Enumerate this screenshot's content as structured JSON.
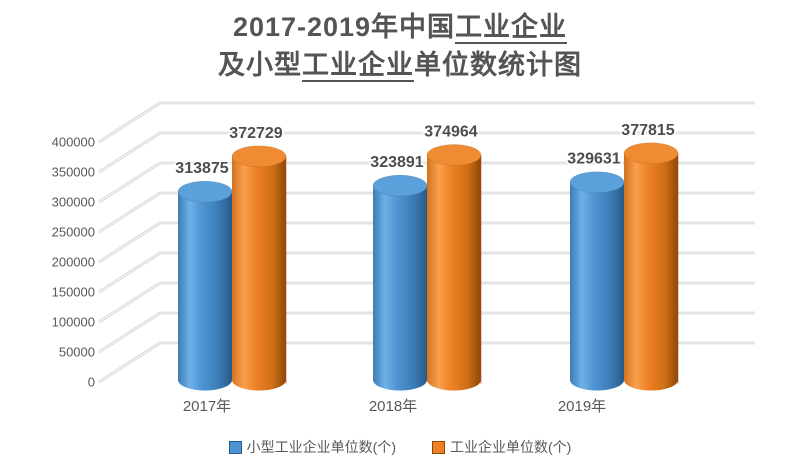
{
  "title": {
    "lines": [
      {
        "pre": "2017-2019年中国",
        "underline": "工业企业",
        "post": ""
      },
      {
        "pre": "及小型",
        "underline": "工业企业",
        "post": "单位数统计图"
      }
    ]
  },
  "chart_data": {
    "type": "bar",
    "subtype": "3d-cylinder",
    "title": "2017-2019年中国工业企业及小型工业企业单位数统计图",
    "categories": [
      "2017年",
      "2018年",
      "2019年"
    ],
    "series": [
      {
        "name": "小型工业企业单位数(个)",
        "color": "#4E94D2",
        "color_dark": "#275A88",
        "color_light": "#6EB0E8",
        "top_color": "#5AA0DA",
        "values": [
          313875,
          323891,
          329631
        ]
      },
      {
        "name": "工业企业单位数(个)",
        "color": "#EE8125",
        "color_dark": "#8C4A06",
        "color_light": "#F9A04E",
        "top_color": "#EF8C33",
        "values": [
          372729,
          374964,
          377815
        ]
      }
    ],
    "ylim": [
      0,
      400000
    ],
    "ytick_step": 50000,
    "ytick_labels": [
      "0",
      "50000",
      "100000",
      "150000",
      "200000",
      "250000",
      "300000",
      "350000",
      "400000"
    ],
    "grid": true,
    "legend_position": "bottom",
    "data_labels": true,
    "text_color": "#595959",
    "gridline_color": "#c9c9c9"
  }
}
